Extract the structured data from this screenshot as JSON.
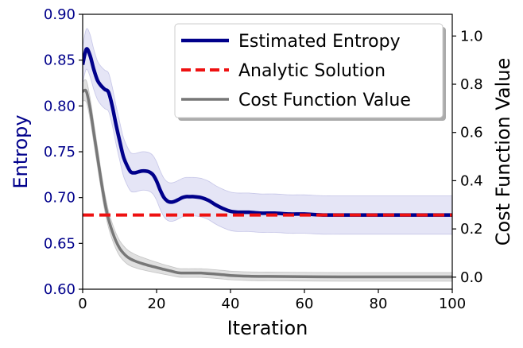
{
  "chart_data": {
    "type": "line",
    "xlabel": "Iteration",
    "ylabel_left": "Entropy",
    "ylabel_right": "Cost Function Value",
    "xlim": [
      0,
      100
    ],
    "ylim_left": [
      0.6,
      0.9
    ],
    "ylim_right": [
      -0.05,
      1.09
    ],
    "x_ticks": [
      0,
      20,
      40,
      60,
      80,
      100
    ],
    "y_ticks_left": [
      0.6,
      0.65,
      0.7,
      0.75,
      0.8,
      0.85,
      0.9
    ],
    "y_tick_labels_left": [
      "0.60",
      "0.65",
      "0.70",
      "0.75",
      "0.80",
      "0.85",
      "0.90"
    ],
    "y_ticks_right": [
      0.0,
      0.2,
      0.4,
      0.6,
      0.8,
      1.0
    ],
    "y_tick_labels_right": [
      "0.0",
      "0.2",
      "0.4",
      "0.6",
      "0.8",
      "1.0"
    ],
    "legend_position": "top-right",
    "colors": {
      "entropy": "#00008b",
      "entropy_band": "#9999dd",
      "analytic": "#ee1111",
      "cost": "#777777",
      "cost_band": "#bbbbbb",
      "left_axis_text": "#00008b"
    },
    "series": [
      {
        "name": "Estimated Entropy",
        "axis": "left",
        "x": [
          0,
          1,
          2,
          3,
          4,
          5,
          6,
          7,
          8,
          9,
          10,
          11,
          12,
          13,
          14,
          15,
          16,
          17,
          18,
          19,
          20,
          21,
          22,
          23,
          24,
          25,
          26,
          27,
          28,
          29,
          30,
          32,
          34,
          36,
          38,
          40,
          42,
          45,
          48,
          52,
          56,
          60,
          65,
          70,
          80,
          90,
          100
        ],
        "y": [
          0.845,
          0.862,
          0.855,
          0.84,
          0.828,
          0.822,
          0.818,
          0.815,
          0.8,
          0.78,
          0.762,
          0.745,
          0.735,
          0.728,
          0.727,
          0.728,
          0.729,
          0.729,
          0.728,
          0.725,
          0.718,
          0.708,
          0.7,
          0.696,
          0.695,
          0.696,
          0.698,
          0.7,
          0.701,
          0.701,
          0.701,
          0.7,
          0.697,
          0.692,
          0.688,
          0.685,
          0.684,
          0.684,
          0.683,
          0.683,
          0.682,
          0.682,
          0.681,
          0.681,
          0.681,
          0.681,
          0.681
        ],
        "band": [
          0.02,
          0.022,
          0.023,
          0.022,
          0.021,
          0.021,
          0.021,
          0.021,
          0.021,
          0.021,
          0.021,
          0.021,
          0.021,
          0.021,
          0.021,
          0.021,
          0.021,
          0.021,
          0.021,
          0.021,
          0.021,
          0.021,
          0.021,
          0.021,
          0.021,
          0.021,
          0.021,
          0.021,
          0.021,
          0.021,
          0.021,
          0.021,
          0.021,
          0.021,
          0.021,
          0.021,
          0.021,
          0.021,
          0.021,
          0.021,
          0.021,
          0.021,
          0.021,
          0.021,
          0.021,
          0.021,
          0.021
        ]
      },
      {
        "name": "Analytic Solution",
        "axis": "left",
        "style": "dashed",
        "x": [
          0,
          100
        ],
        "y": [
          0.681,
          0.681
        ]
      },
      {
        "name": "Cost Function Value",
        "axis": "right",
        "x": [
          0,
          1,
          2,
          3,
          4,
          5,
          6,
          7,
          8,
          9,
          10,
          11,
          12,
          13,
          14,
          15,
          16,
          18,
          20,
          22,
          24,
          26,
          28,
          30,
          32,
          35,
          38,
          40,
          45,
          50,
          60,
          70,
          80,
          90,
          100
        ],
        "y": [
          0.77,
          0.77,
          0.7,
          0.6,
          0.5,
          0.4,
          0.31,
          0.24,
          0.19,
          0.15,
          0.12,
          0.1,
          0.085,
          0.075,
          0.068,
          0.062,
          0.057,
          0.048,
          0.04,
          0.032,
          0.025,
          0.018,
          0.017,
          0.017,
          0.017,
          0.014,
          0.01,
          0.007,
          0.004,
          0.003,
          0.002,
          0.001,
          0.001,
          0.001,
          0.001
        ],
        "band": [
          0.04,
          0.045,
          0.045,
          0.043,
          0.041,
          0.039,
          0.037,
          0.035,
          0.034,
          0.033,
          0.032,
          0.031,
          0.03,
          0.029,
          0.028,
          0.027,
          0.026,
          0.024,
          0.022,
          0.02,
          0.019,
          0.018,
          0.018,
          0.018,
          0.018,
          0.018,
          0.018,
          0.018,
          0.018,
          0.018,
          0.018,
          0.018,
          0.018,
          0.018,
          0.018
        ]
      }
    ]
  }
}
